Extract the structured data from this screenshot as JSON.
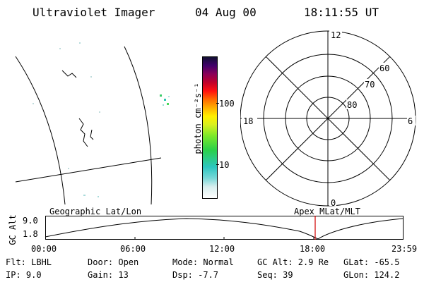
{
  "header": {
    "title": "Ultraviolet Imager",
    "date": "04 Aug 00",
    "time": "18:11:55 UT"
  },
  "colorbar": {
    "label": "photon cm⁻²s⁻¹",
    "ticks": [
      "100",
      "10"
    ]
  },
  "polar": {
    "mlt_labels": {
      "top": "12",
      "left": "18",
      "right": "6",
      "bottom": "0"
    },
    "lat_labels": [
      "60",
      "70",
      "80"
    ]
  },
  "timeline": {
    "left_title": "Geographic Lat/Lon",
    "right_title": "Apex MLat/MLT",
    "ylabel": "GC Alt",
    "y_ticks": [
      "9.0",
      "1.8"
    ],
    "x_ticks": [
      "00:00",
      "06:00",
      "12:00",
      "18:00",
      "23:59"
    ],
    "marker_color": "#d00000"
  },
  "info": {
    "row1": {
      "flt": "Flt: LBHL",
      "door": "Door: Open",
      "mode": "Mode: Normal",
      "gcalt": "GC Alt: 2.9 Re",
      "glat": "GLat: -65.5"
    },
    "row2": {
      "ip": "IP:  9.0",
      "gain": "Gain: 13",
      "dsp": "Dsp:   -7.7",
      "seq": "Seq: 39",
      "glon": "GLon: 124.2"
    }
  }
}
